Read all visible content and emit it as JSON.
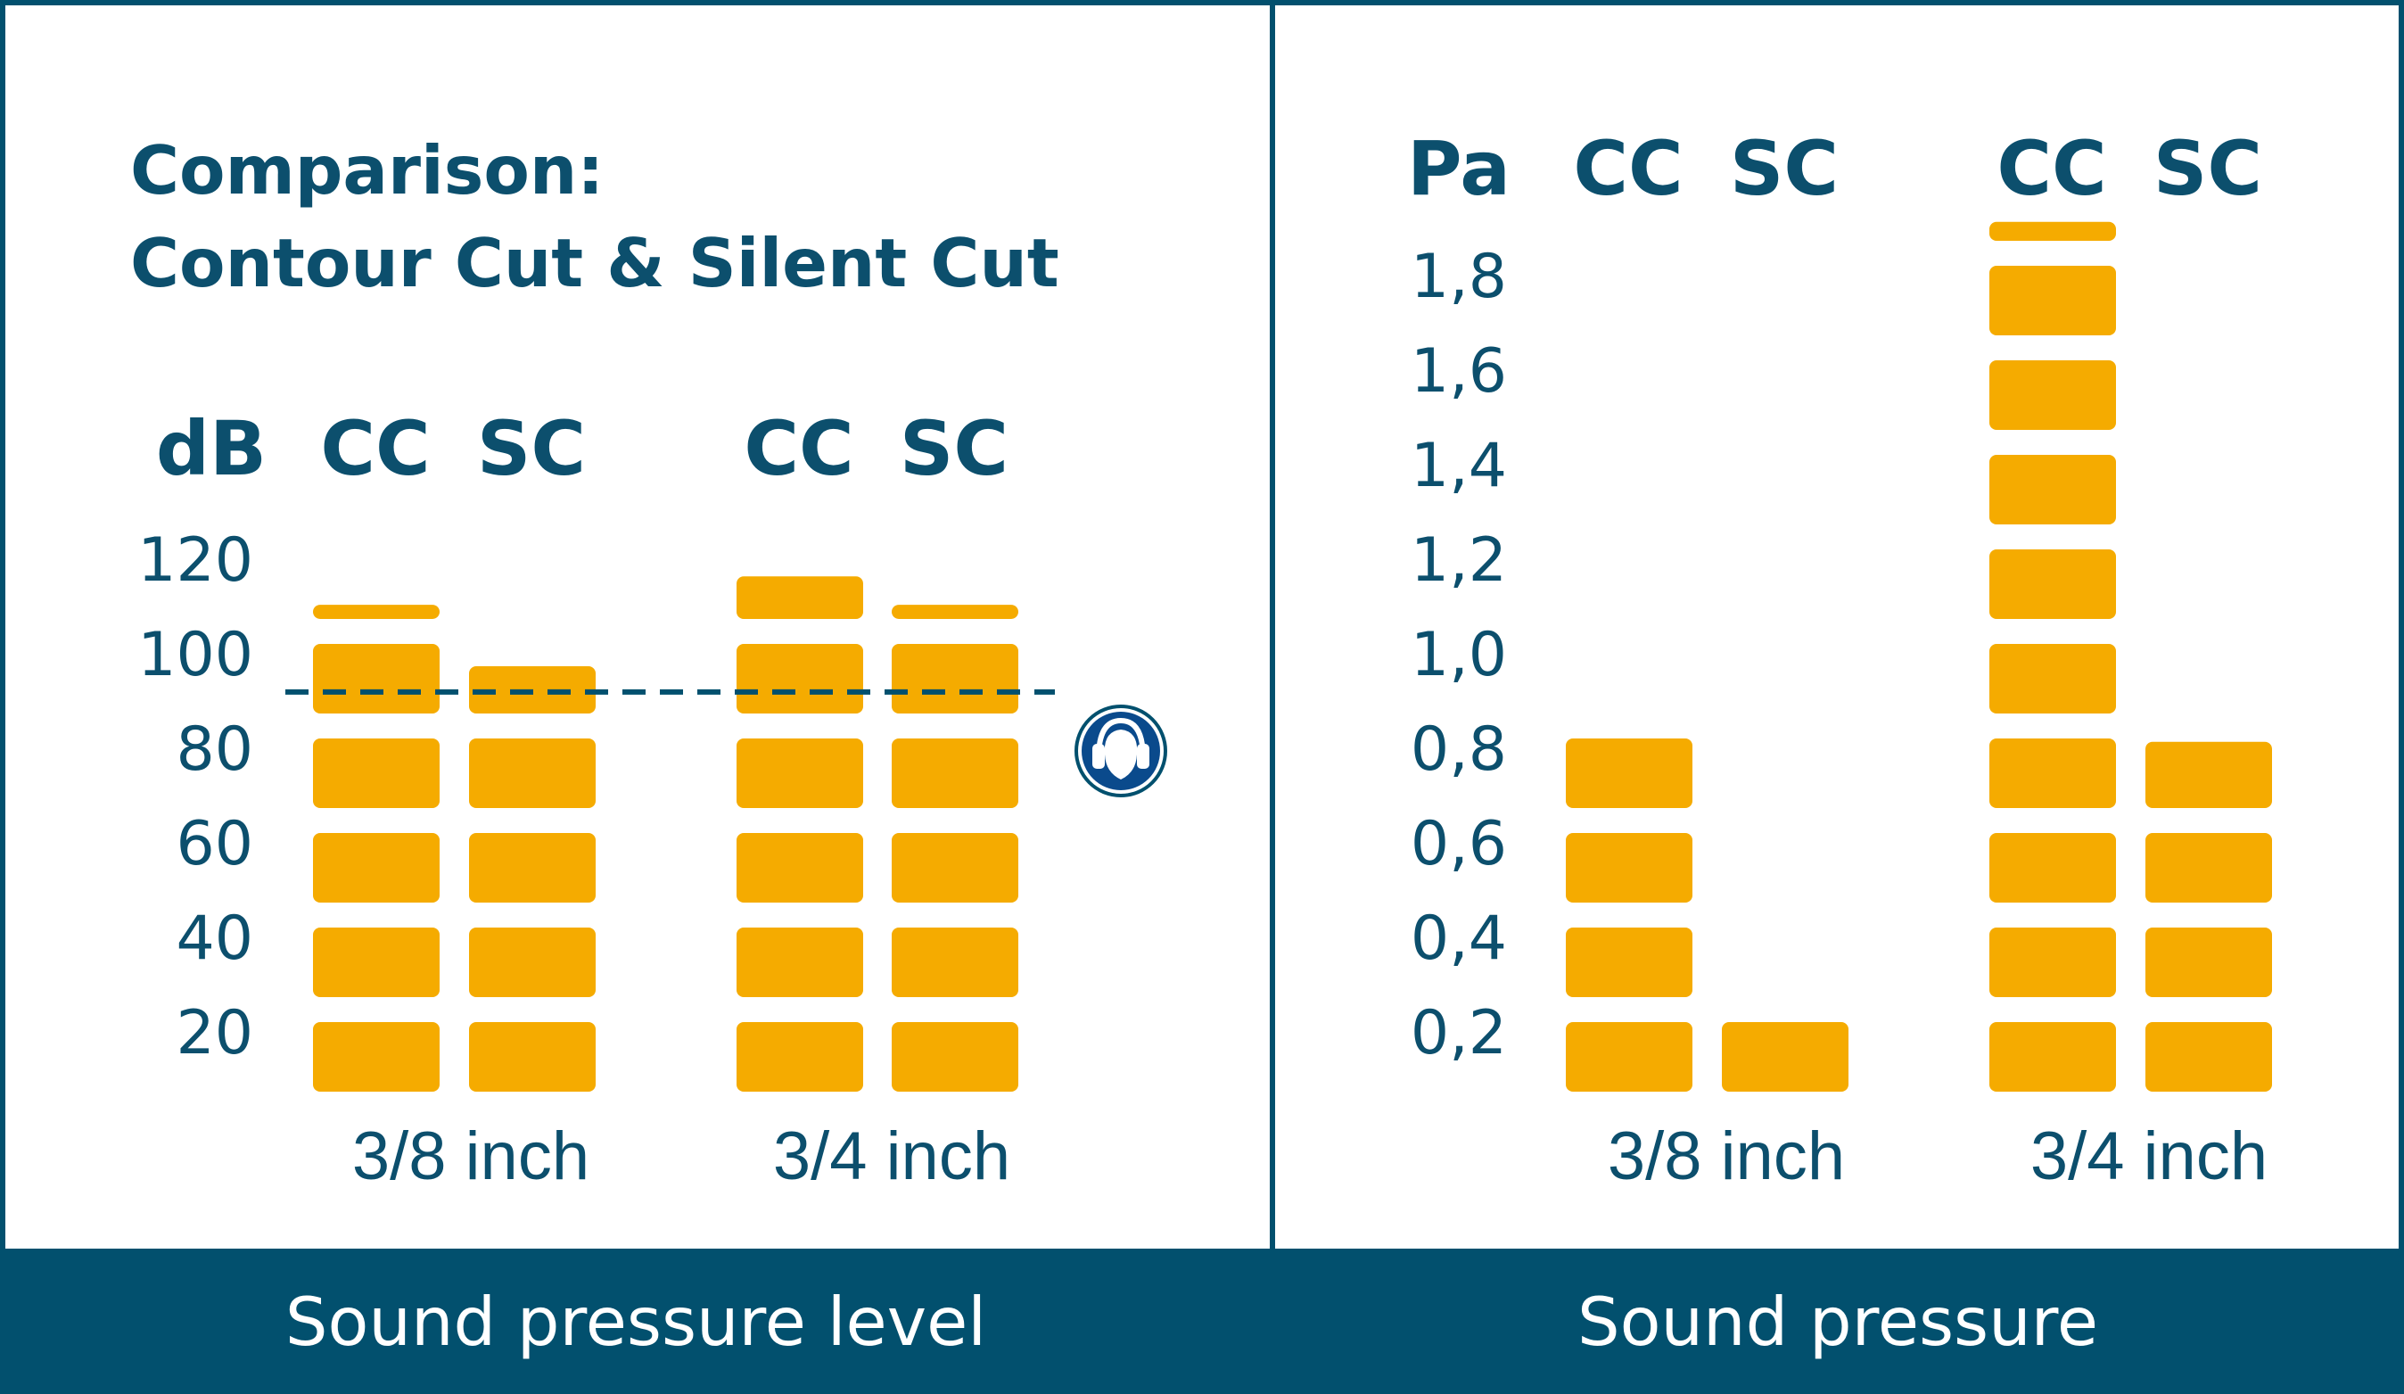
{
  "colors": {
    "frame": "#02506e",
    "text": "#0c4f6d",
    "bar": "#f5ab00",
    "footer_bg": "#02506e",
    "footer_text": "#ffffff",
    "icon_bg": "#0a4a8c"
  },
  "title": {
    "line1": "Comparison:",
    "line2": "Contour Cut & Silent Cut"
  },
  "icon": {
    "name": "hearing-protection-icon"
  },
  "chart_data": [
    {
      "type": "bar",
      "style": "stacked blocks",
      "footer_label": "Sound pressure level",
      "unit_label": "dB",
      "series_labels": [
        "CC",
        "SC",
        "CC",
        "SC"
      ],
      "group_labels": [
        "3/8 inch",
        "3/4 inch"
      ],
      "y_ticks": [
        "20",
        "40",
        "60",
        "80",
        "100",
        "120"
      ],
      "ylim": [
        0,
        120
      ],
      "block_step": 20,
      "bars": [
        {
          "group": "3/8 inch",
          "series": "CC",
          "value": 103
        },
        {
          "group": "3/8 inch",
          "series": "SC",
          "value": 90
        },
        {
          "group": "3/4 inch",
          "series": "CC",
          "value": 109
        },
        {
          "group": "3/4 inch",
          "series": "SC",
          "value": 103
        }
      ],
      "reference_line": {
        "value": 87,
        "style": "dashed",
        "marker": "hearing-protection-icon"
      }
    },
    {
      "type": "bar",
      "style": "stacked blocks",
      "footer_label": "Sound pressure",
      "unit_label": "Pa",
      "series_labels": [
        "CC",
        "SC",
        "CC",
        "SC"
      ],
      "group_labels": [
        "3/8 inch",
        "3/4 inch"
      ],
      "y_ticks": [
        "0,2",
        "0,4",
        "0,6",
        "0,8",
        "1,0",
        "1,2",
        "1,4",
        "1,6",
        "1,8"
      ],
      "ylim": [
        0,
        1.8
      ],
      "block_step": 0.2,
      "bars": [
        {
          "group": "3/8 inch",
          "series": "CC",
          "value": 0.8
        },
        {
          "group": "3/8 inch",
          "series": "SC",
          "value": 0.2
        },
        {
          "group": "3/4 inch",
          "series": "CC",
          "value": 1.84
        },
        {
          "group": "3/4 inch",
          "series": "SC",
          "value": 0.74
        }
      ]
    }
  ]
}
